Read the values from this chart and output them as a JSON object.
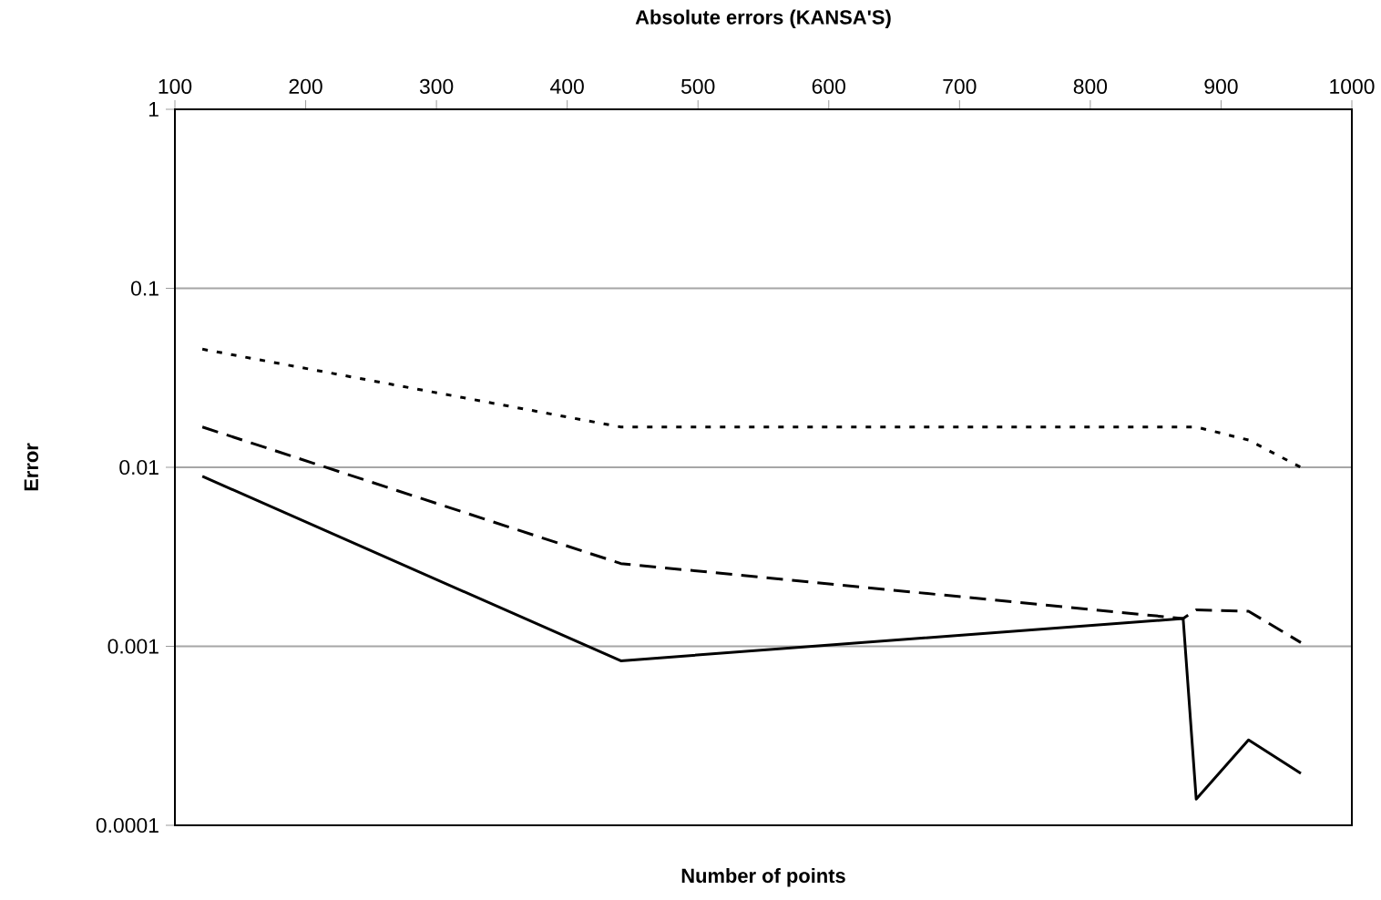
{
  "chart_data": {
    "type": "line",
    "title": "Absolute errors (KANSA'S)",
    "xlabel": "Number of points",
    "ylabel": "Error",
    "log": "y",
    "grid": "y",
    "marker": "none",
    "xlim": [
      100,
      1000
    ],
    "xticks": [
      100,
      200,
      300,
      400,
      500,
      600,
      700,
      800,
      900,
      1000
    ],
    "ylim": [
      0.0001,
      1
    ],
    "yticks": [
      0.0001,
      0.001,
      0.01,
      0.1,
      1
    ],
    "series": [
      {
        "color": "#000000",
        "line_style": "solid",
        "x": [
          121,
          441,
          871,
          881,
          921,
          961
        ],
        "values": [
          0.0089,
          0.00083,
          0.00143,
          0.00014,
          0.0003,
          0.000195
        ]
      },
      {
        "color": "#000000",
        "line_style": "dashed",
        "x": [
          121,
          441,
          871,
          881,
          921,
          961
        ],
        "values": [
          0.0168,
          0.0029,
          0.00143,
          0.0016,
          0.00157,
          0.00105
        ]
      },
      {
        "color": "#000000",
        "line_style": "dotted",
        "x": [
          121,
          441,
          871,
          881,
          921,
          961
        ],
        "values": [
          0.0457,
          0.0168,
          0.0168,
          0.0168,
          0.0142,
          0.01
        ]
      }
    ]
  }
}
